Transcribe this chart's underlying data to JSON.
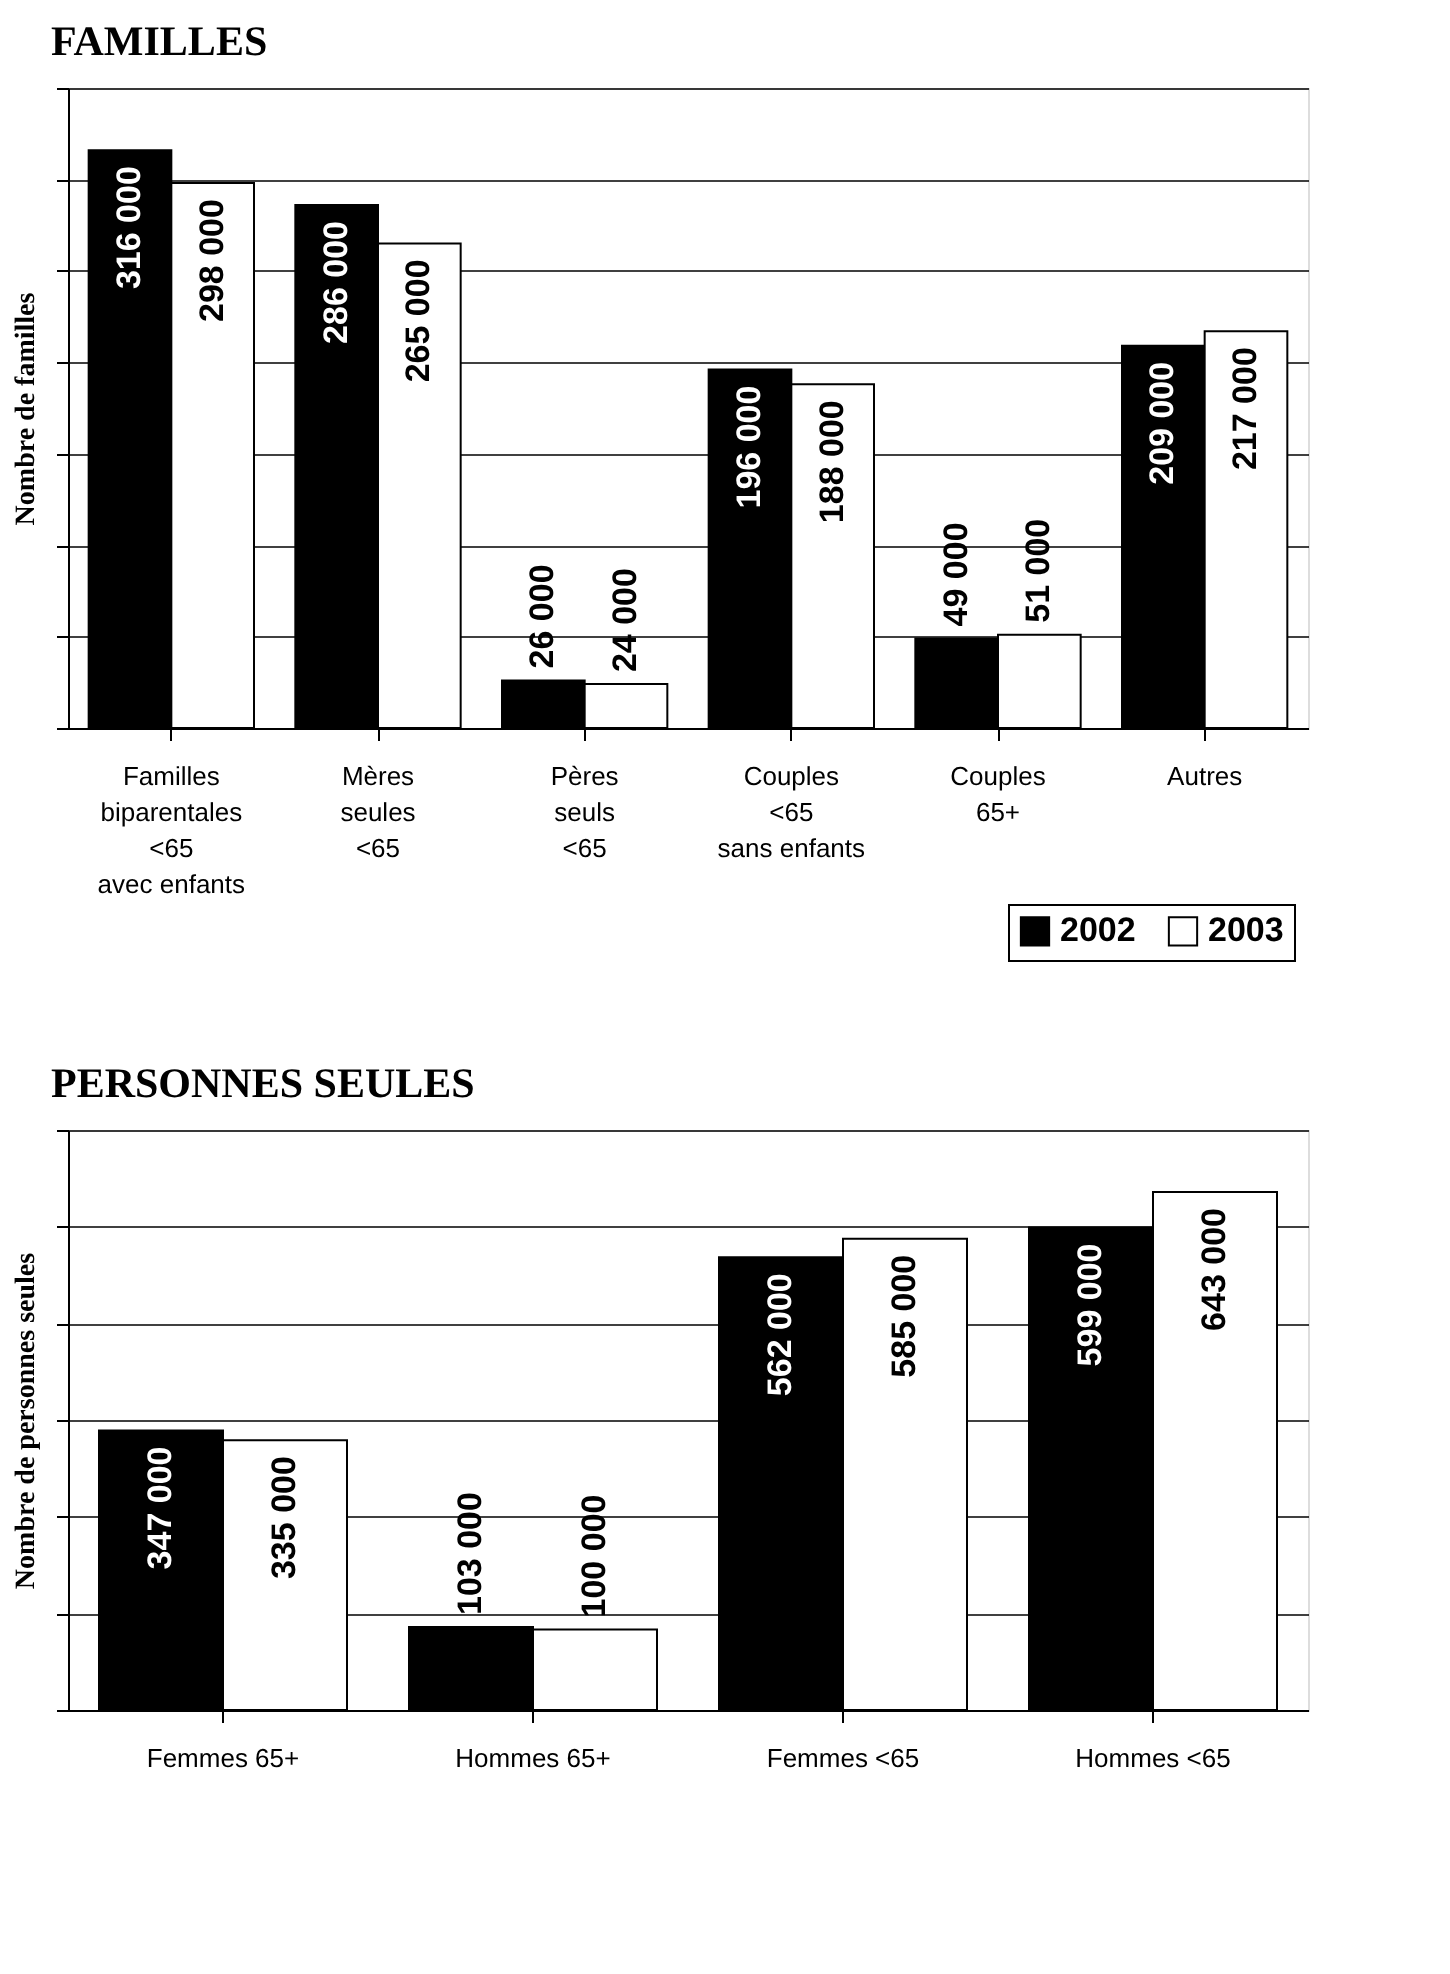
{
  "chart_data": [
    {
      "type": "bar",
      "title": "FAMILLES",
      "ylabel": "Nombre de familles",
      "categories": [
        "Familles\nbiparentales\n<65\navec enfants",
        "Mères\nseules\n<65",
        "Pères\nseuls\n<65",
        "Couples\n<65\nsans enfants",
        "Couples\n65+",
        "Autres"
      ],
      "series": [
        {
          "name": "2002",
          "color": "#000000",
          "values": [
            316000,
            286000,
            26000,
            196000,
            49000,
            209000
          ]
        },
        {
          "name": "2003",
          "color": "#ffffff",
          "values": [
            298000,
            265000,
            24000,
            188000,
            51000,
            217000
          ]
        }
      ],
      "ylim": [
        0,
        350000
      ],
      "yticks": [
        {
          "value": 0,
          "label": null
        },
        {
          "value": 50000,
          "label": null
        },
        {
          "value": 100000,
          "label": null
        },
        {
          "value": 150000,
          "label": null
        },
        {
          "value": 200000,
          "label": null
        },
        {
          "value": 250000,
          "label": null
        },
        {
          "value": 300000,
          "label": null
        },
        {
          "value": 350000,
          "label": null
        }
      ],
      "grid": "y",
      "data_labels": true,
      "legend": "bottom right",
      "tick_labels": "x"
    },
    {
      "type": "bar",
      "title": "PERSONNES SEULES",
      "ylabel": "Nombre de personnes seules",
      "categories": [
        "Femmes 65+",
        "Hommes 65+",
        "Femmes <65",
        "Hommes <65"
      ],
      "series": [
        {
          "color": "#000000",
          "values": [
            347000,
            103000,
            562000,
            599000
          ]
        },
        {
          "color": "#ffffff",
          "values": [
            335000,
            100000,
            585000,
            643000
          ]
        }
      ],
      "ylim": [
        0,
        720000
      ],
      "yticks": [
        {
          "value": 0,
          "label": null
        },
        {
          "value": 120000,
          "label": null
        },
        {
          "value": 240000,
          "label": null
        },
        {
          "value": 360000,
          "label": null
        },
        {
          "value": 480000,
          "label": null
        },
        {
          "value": 600000,
          "label": null
        },
        {
          "value": 720000,
          "label": null
        }
      ],
      "grid": "y",
      "data_labels": true,
      "legend": false,
      "tick_labels": "x"
    }
  ]
}
